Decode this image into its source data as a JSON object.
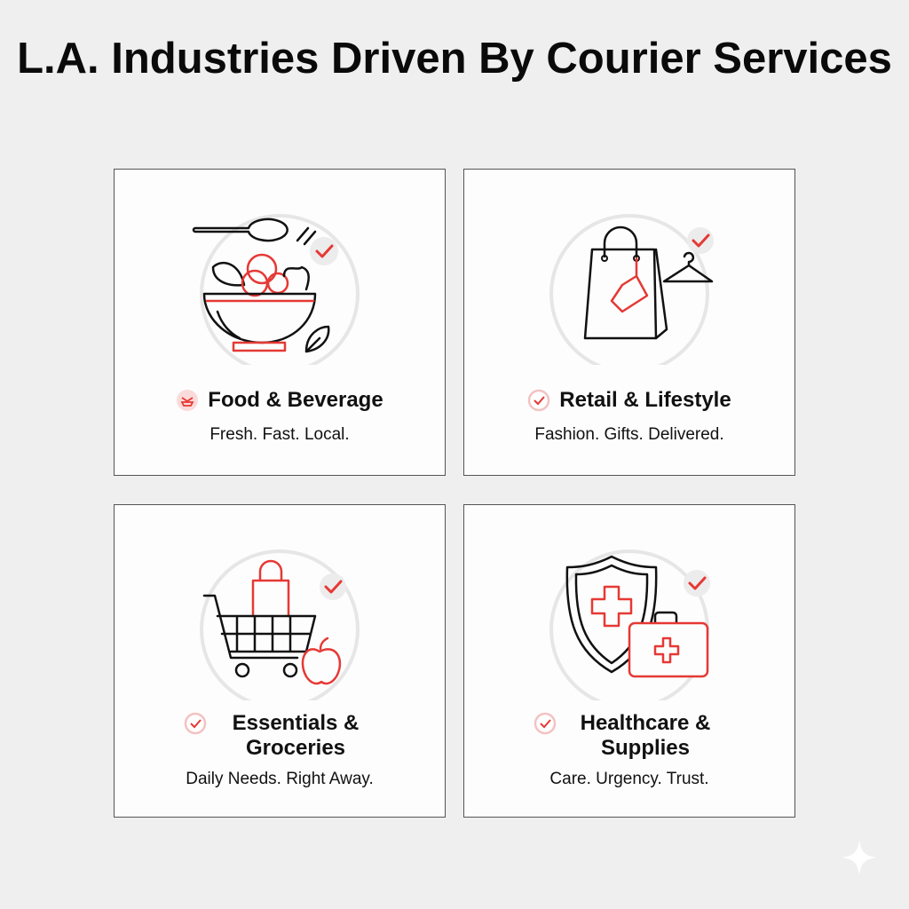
{
  "title": "L.A. Industries Driven By Courier Services",
  "accent_color": "#e53935",
  "cards": [
    {
      "label": "Food & Beverage",
      "tagline": "Fresh. Fast. Local.",
      "icon": "salad-bowl-icon",
      "badge_icon": "food-badge-icon"
    },
    {
      "label": "Retail & Lifestyle",
      "tagline": "Fashion. Gifts. Delivered.",
      "icon": "shopping-bag-icon",
      "badge_icon": "check-circle-icon"
    },
    {
      "label": "Essentials & Groceries",
      "tagline": "Daily Needs. Right Away.",
      "icon": "shopping-cart-icon",
      "badge_icon": "check-circle-icon"
    },
    {
      "label": "Healthcare & Supplies",
      "tagline": "Care. Urgency. Trust.",
      "icon": "medical-shield-icon",
      "badge_icon": "check-circle-icon"
    }
  ]
}
